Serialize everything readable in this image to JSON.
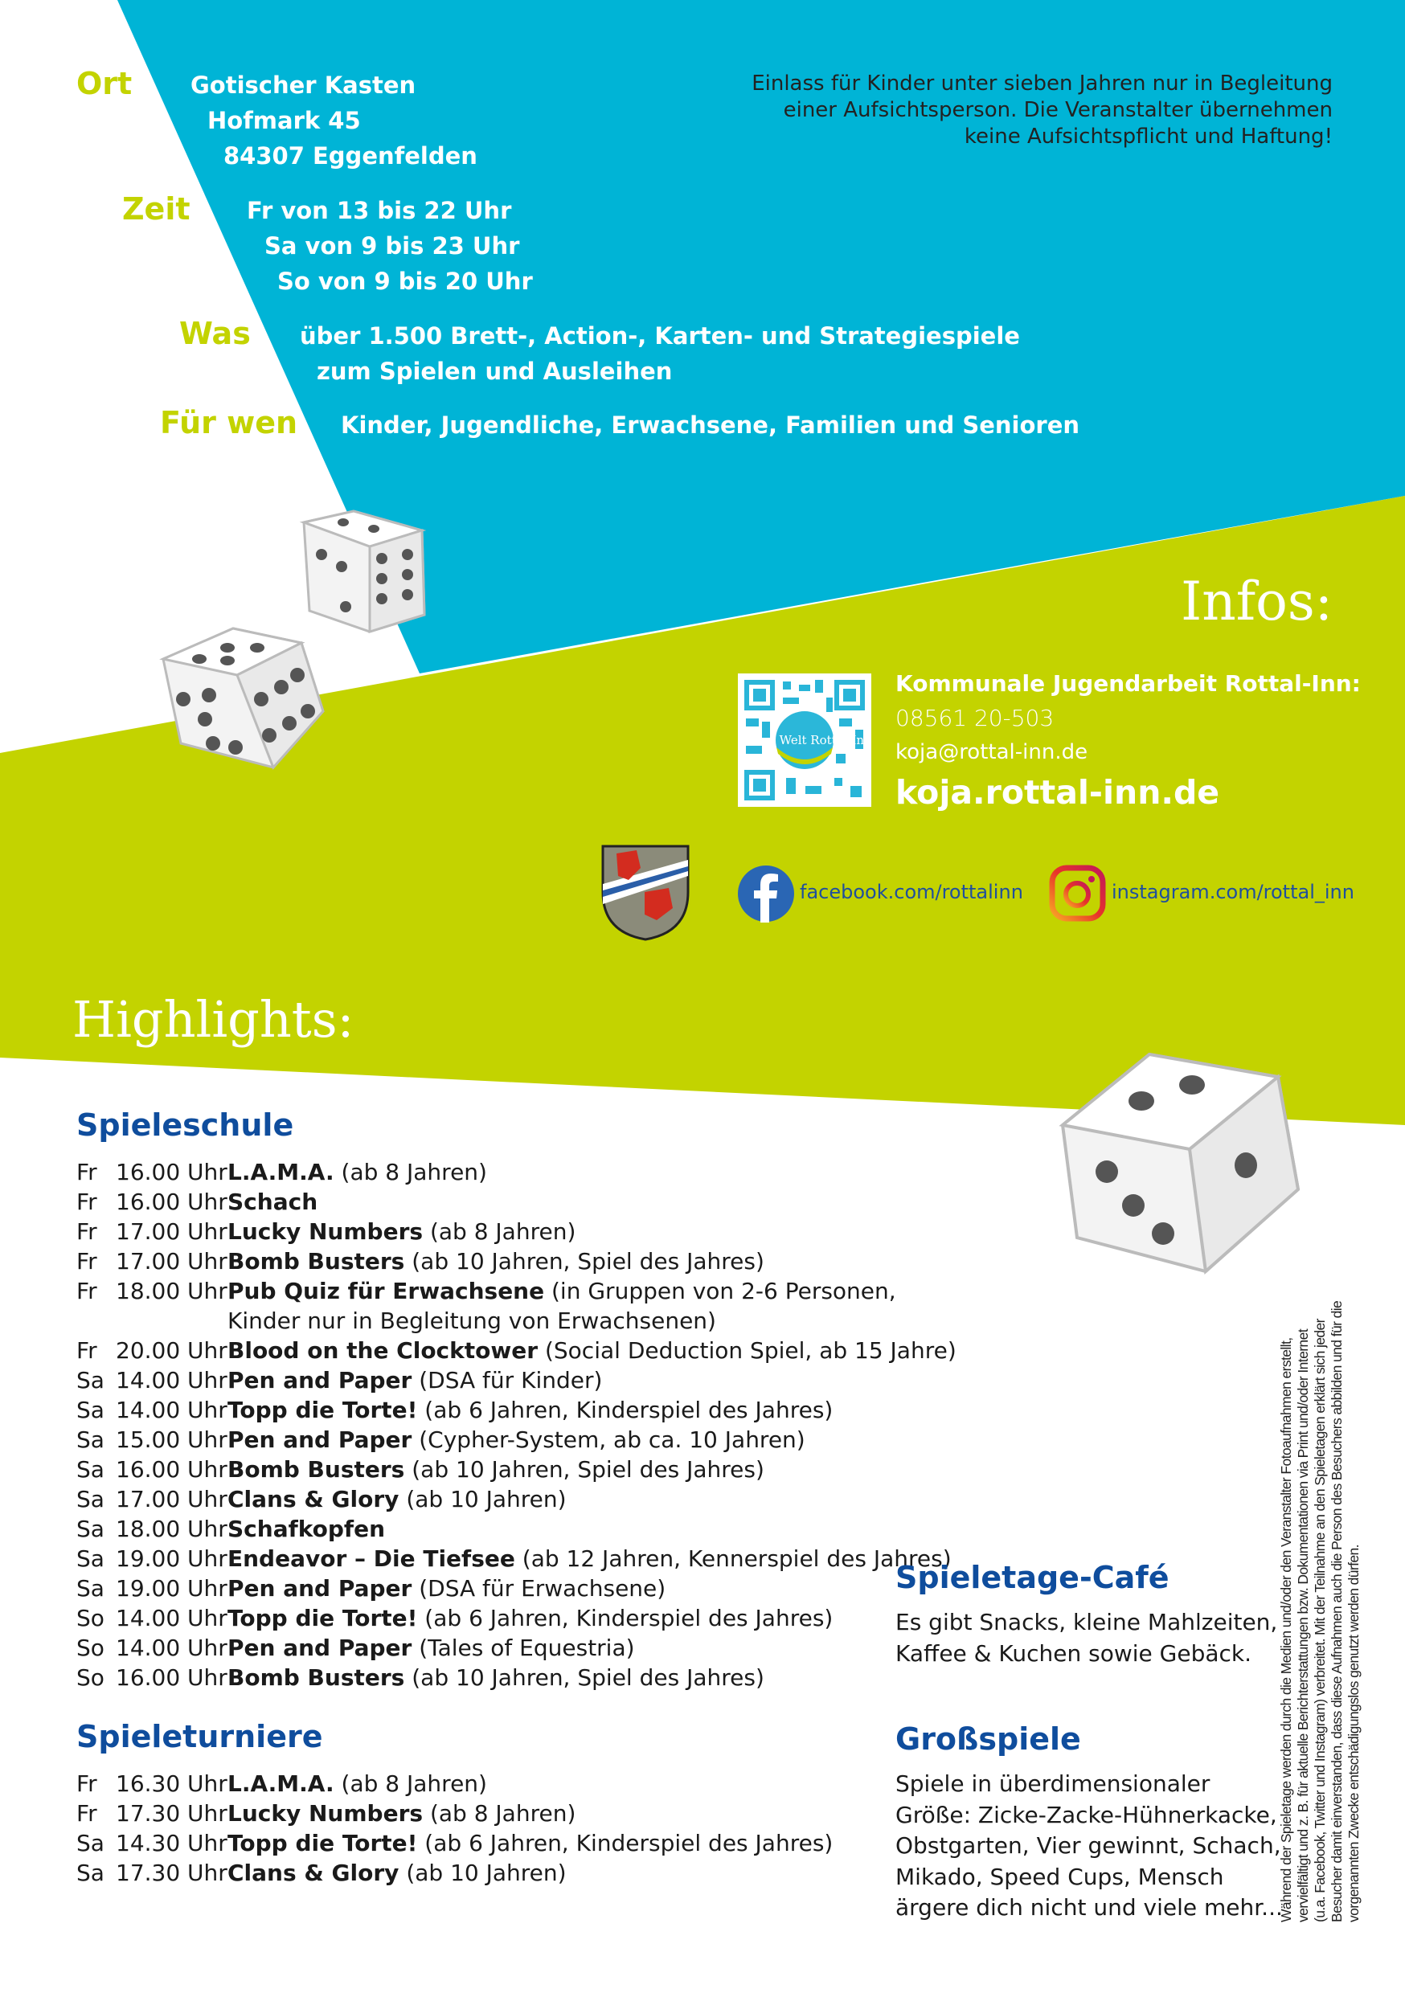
{
  "colors": {
    "cyan": "#00b4d6",
    "green": "#c3d300",
    "blue": "#0f4d9d",
    "white": "#ffffff"
  },
  "details": {
    "ort": {
      "label": "Ort",
      "lines": [
        "Gotischer Kasten",
        "Hofmark 45",
        "84307 Eggenfelden"
      ]
    },
    "zeit": {
      "label": "Zeit",
      "lines": [
        "Fr von 13 bis 22 Uhr",
        "Sa von 9 bis 23 Uhr",
        "So von 9 bis 20 Uhr"
      ]
    },
    "was": {
      "label": "Was",
      "lines": [
        "über 1.500 Brett-, Action-, Karten- und Strategiespiele",
        "zum Spielen und Ausleihen"
      ]
    },
    "fuer_wen": {
      "label": "Für wen",
      "lines": [
        "Kinder, Jugendliche, Erwachsene, Familien und Senioren"
      ]
    }
  },
  "admission_note": [
    "Einlass für Kinder unter sieben Jahren nur in Begleitung",
    "einer Aufsichtsperson. Die Veranstalter übernehmen",
    "keine Aufsichtspflicht und Haftung!"
  ],
  "infos": {
    "title": "Infos:",
    "org": "Kommunale Jugendarbeit Rottal-Inn:",
    "phone": "08561 20-503",
    "email": "koja@rottal-inn.de",
    "website": "koja.rottal-inn.de",
    "qr_logo": "Meine Welt Rottal-Inn",
    "facebook": "facebook.com/rottalinn",
    "instagram": "instagram.com/rottal_inn",
    "icons": [
      "qr-code-icon",
      "coat-of-arms-icon",
      "facebook-icon",
      "instagram-icon"
    ]
  },
  "highlights": {
    "title": "Highlights:",
    "spieleschule": {
      "title": "Spieleschule",
      "rows": [
        {
          "day": "Fr",
          "time": "16.00 Uhr",
          "name": "L.A.M.A.",
          "extra": " (ab 8 Jahren)"
        },
        {
          "day": "Fr",
          "time": "16.00 Uhr",
          "name": "Schach",
          "extra": ""
        },
        {
          "day": "Fr",
          "time": "17.00 Uhr",
          "name": "Lucky Numbers",
          "extra": " (ab 8 Jahren)"
        },
        {
          "day": "Fr",
          "time": "17.00 Uhr",
          "name": "Bomb Busters",
          "extra": " (ab 10 Jahren, Spiel des Jahres)"
        },
        {
          "day": "Fr",
          "time": "18.00 Uhr",
          "name": "Pub Quiz für Erwachsene",
          "extra": " (in Gruppen von 2-6 Personen,",
          "extra2": "Kinder nur in Begleitung von Erwachsenen)"
        },
        {
          "day": "Fr",
          "time": "20.00 Uhr",
          "name": "Blood on the Clocktower",
          "extra": " (Social Deduction Spiel, ab 15 Jahre)"
        },
        {
          "day": "Sa",
          "time": "14.00 Uhr",
          "name": "Pen and Paper",
          "extra": " (DSA für Kinder)"
        },
        {
          "day": "Sa",
          "time": "14.00 Uhr",
          "name": "Topp die Torte!",
          "extra": " (ab 6 Jahren, Kinderspiel des Jahres)"
        },
        {
          "day": "Sa",
          "time": "15.00 Uhr",
          "name": "Pen and Paper",
          "extra": " (Cypher-System, ab ca. 10 Jahren)"
        },
        {
          "day": "Sa",
          "time": "16.00 Uhr",
          "name": "Bomb Busters",
          "extra": " (ab 10 Jahren, Spiel des Jahres)"
        },
        {
          "day": "Sa",
          "time": "17.00 Uhr",
          "name": "Clans & Glory",
          "extra": " (ab 10 Jahren)"
        },
        {
          "day": "Sa",
          "time": "18.00 Uhr",
          "name": "Schafkopfen",
          "extra": ""
        },
        {
          "day": "Sa",
          "time": "19.00 Uhr",
          "name": "Endeavor – Die Tiefsee",
          "extra": " (ab 12 Jahren, Kennerspiel des Jahres)"
        },
        {
          "day": "Sa",
          "time": "19.00 Uhr",
          "name": "Pen and Paper",
          "extra": " (DSA für Erwachsene)"
        },
        {
          "day": "So",
          "time": "14.00 Uhr",
          "name": "Topp die Torte!",
          "extra": " (ab 6 Jahren, Kinderspiel des Jahres)"
        },
        {
          "day": "So",
          "time": "14.00 Uhr",
          "name": "Pen and Paper",
          "extra": " (Tales of Equestria)"
        },
        {
          "day": "So",
          "time": "16.00 Uhr",
          "name": "Bomb Busters",
          "extra": " (ab 10 Jahren, Spiel des Jahres)"
        }
      ]
    },
    "spieleturniere": {
      "title": "Spieleturniere",
      "rows": [
        {
          "day": "Fr",
          "time": "16.30 Uhr",
          "name": "L.A.M.A.",
          "extra": " (ab 8 Jahren)"
        },
        {
          "day": "Fr",
          "time": "17.30 Uhr",
          "name": "Lucky Numbers",
          "extra": " (ab 8 Jahren)"
        },
        {
          "day": "Sa",
          "time": "14.30 Uhr",
          "name": "Topp die Torte!",
          "extra": " (ab 6 Jahren, Kinderspiel des Jahres)"
        },
        {
          "day": "Sa",
          "time": "17.30 Uhr",
          "name": "Clans & Glory",
          "extra": " (ab 10 Jahren)"
        }
      ]
    },
    "cafe": {
      "title": "Spieletage-Café",
      "lines": [
        "Es gibt Snacks, kleine Mahlzeiten,",
        "Kaffee & Kuchen sowie Gebäck."
      ]
    },
    "grossspiele": {
      "title": "Großspiele",
      "lines": [
        "Spiele in überdimensionaler",
        "Größe: Zicke-Zacke-Hühnerkacke,",
        "Obstgarten, Vier gewinnt, Schach,",
        "Mikado, Speed Cups, Mensch",
        "ärgere dich nicht und viele mehr..."
      ]
    }
  },
  "disclaimer": [
    "Während der Spieletage werden durch die Medien und/oder den Veranstalter Fotoaufnahmen erstellt,",
    "vervielfältigt und z. B. für aktuelle Berichterstattungen bzw. Dokumentationen via Print und/oder Internet",
    "(u.a. Facebook, Twitter und Instagram) verbreitet. Mit der Teilnahme an den Spieletagen erklärt sich jeder",
    "Besucher damit einverstanden, dass diese Aufnahmen auch die Person des Besuchers abbilden und für die",
    "vorgenannten Zwecke entschädigungslos genutzt werden dürfen."
  ]
}
